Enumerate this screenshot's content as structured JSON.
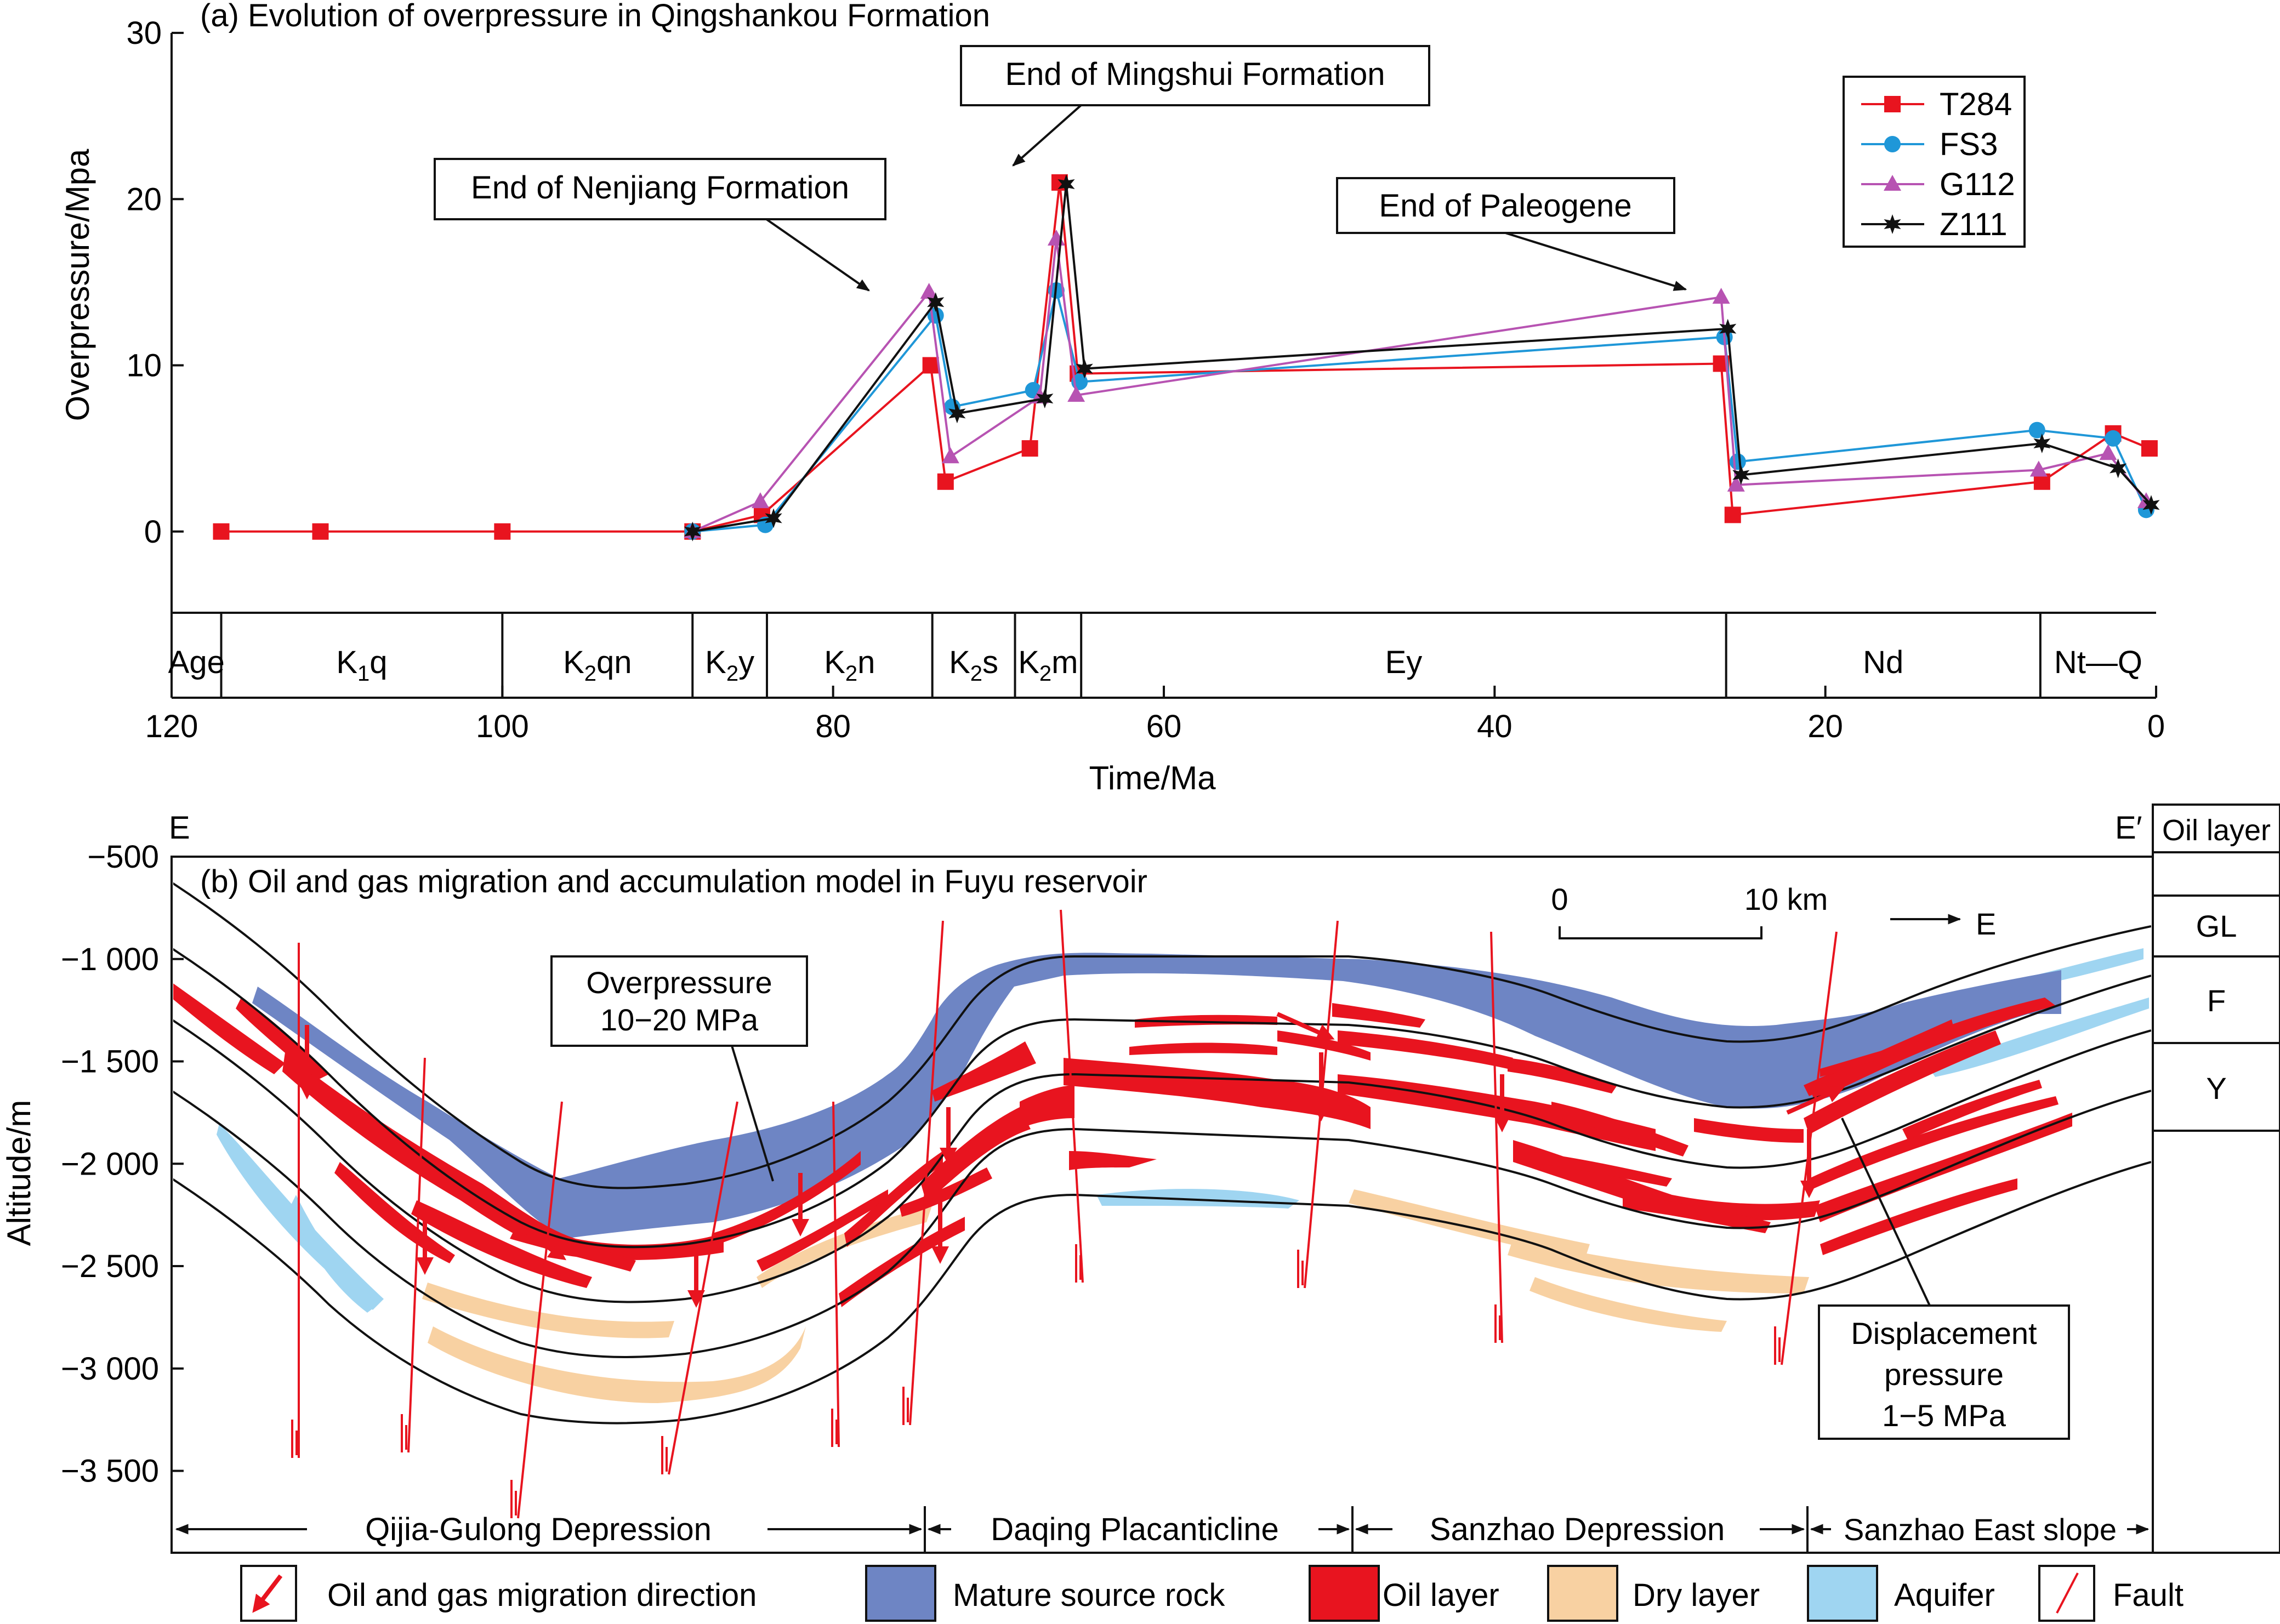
{
  "chart_data": {
    "type": "line",
    "title": "(a) Evolution of overpressure in Qingshankou Formation",
    "xlabel": "Time/Ma",
    "ylabel": "Overpressure/Mpa",
    "xlim": [
      120,
      0
    ],
    "ylim": [
      -10,
      30
    ],
    "xticks": [
      "120",
      "100",
      "80",
      "60",
      "40",
      "20",
      "0"
    ],
    "yticks": [
      "0",
      "10",
      "20",
      "30"
    ],
    "legend_position": "top-right",
    "series": [
      {
        "name": "T284",
        "color": "#e8141f",
        "marker": "square",
        "x": [
          117,
          111,
          100,
          88.5,
          84.3,
          74.1,
          73.2,
          68.1,
          66.3,
          65.2,
          26.3,
          25.6,
          6.9,
          2.6,
          0.4
        ],
        "y": [
          0,
          0,
          0,
          0,
          1,
          10,
          3,
          5,
          21,
          9.5,
          10.1,
          1,
          3,
          5.9,
          5
        ]
      },
      {
        "name": "FS3",
        "color": "#1f97d8",
        "marker": "circle",
        "x": [
          88.5,
          84.1,
          73.8,
          72.8,
          67.9,
          66.5,
          65.1,
          26.1,
          25.3,
          7.2,
          2.6,
          0.6
        ],
        "y": [
          0,
          0.4,
          13,
          7.5,
          8.5,
          14.5,
          9,
          11.7,
          4.2,
          6.1,
          5.6,
          1.3
        ]
      },
      {
        "name": "G112",
        "color": "#b753b2",
        "marker": "triangle",
        "x": [
          88.5,
          84.4,
          74.2,
          72.9,
          67.5,
          66.5,
          65.3,
          26.3,
          25.4,
          7.1,
          2.9,
          0.6
        ],
        "y": [
          0,
          1.8,
          14.4,
          4.5,
          8.1,
          17.6,
          8.2,
          14.1,
          2.8,
          3.7,
          4.7,
          1.8
        ]
      },
      {
        "name": "Z111",
        "color": "#111111",
        "marker": "star",
        "x": [
          88.5,
          83.6,
          73.8,
          72.5,
          67.2,
          65.9,
          64.8,
          25.9,
          25.1,
          6.9,
          2.3,
          0.3
        ],
        "y": [
          0,
          0.8,
          13.8,
          7.1,
          8,
          20.9,
          9.8,
          12.2,
          3.4,
          5.3,
          3.8,
          1.6
        ]
      }
    ],
    "annotations": [
      "End of Nenjiang Formation",
      "End of Mingshui Formation",
      "End of Paleogene"
    ],
    "strata": {
      "age_label": "Age",
      "boundaries": [
        117,
        100,
        88.5,
        84,
        74,
        69,
        65,
        26,
        7,
        0
      ],
      "labels": [
        {
          "base": "K",
          "sub": "1",
          "rest": "q"
        },
        {
          "base": "K",
          "sub": "2",
          "rest": "qn"
        },
        {
          "base": "K",
          "sub": "2",
          "rest": "y"
        },
        {
          "base": "K",
          "sub": "2",
          "rest": "n"
        },
        {
          "base": "K",
          "sub": "2",
          "rest": "s"
        },
        {
          "base": "K",
          "sub": "2",
          "rest": "m"
        },
        {
          "base": "Ey",
          "sub": "",
          "rest": ""
        },
        {
          "base": "Nd",
          "sub": "",
          "rest": ""
        },
        {
          "base": "Nt—Q",
          "sub": "",
          "rest": ""
        }
      ]
    }
  },
  "section": {
    "title": "(b) Oil and gas migration and accumulation model in Fuyu reservoir",
    "left_end": "E",
    "right_end": "E′",
    "ylabel": "Altitude/m",
    "ylim": [
      -3900,
      -500
    ],
    "yticks": [
      "−500",
      "−1 000",
      "−1 500",
      "−2 000",
      "−2 500",
      "−3 000",
      "−3 500"
    ],
    "scale_zero": "0",
    "scale_label": "10 km",
    "direction_label": "E",
    "callout_overpressure_line1": "Overpressure",
    "callout_overpressure_line2": "10−20 MPa",
    "callout_displacement_line1": "Displacement",
    "callout_displacement_line2": "pressure",
    "callout_displacement_line3": "1−5 MPa",
    "oil_layer_header": "Oil layer",
    "oil_layers": [
      "GL",
      "F",
      "Y"
    ],
    "regions": [
      "Qijia-Gulong Depression",
      "Daqing Placanticline",
      "Sanzhao Depression",
      "Sanzhao East slope"
    ]
  },
  "legend_b": [
    {
      "label": "Oil and gas migration direction",
      "icon": "migration-arrow-icon"
    },
    {
      "label": "Mature source rock",
      "icon": "swatch",
      "color": "#6e85c4"
    },
    {
      "label": "Oil layer",
      "icon": "swatch",
      "color": "#e8141f"
    },
    {
      "label": "Dry layer",
      "icon": "swatch",
      "color": "#f8d1a2"
    },
    {
      "label": "Aquifer",
      "icon": "swatch",
      "color": "#9fd5f1"
    },
    {
      "label": "Fault",
      "icon": "fault-icon"
    }
  ],
  "colors": {
    "source_rock": "#6e85c4",
    "oil": "#e8141f",
    "dry": "#f8d1a2",
    "aquifer": "#9fd5f1",
    "fault": "#e8141f"
  }
}
